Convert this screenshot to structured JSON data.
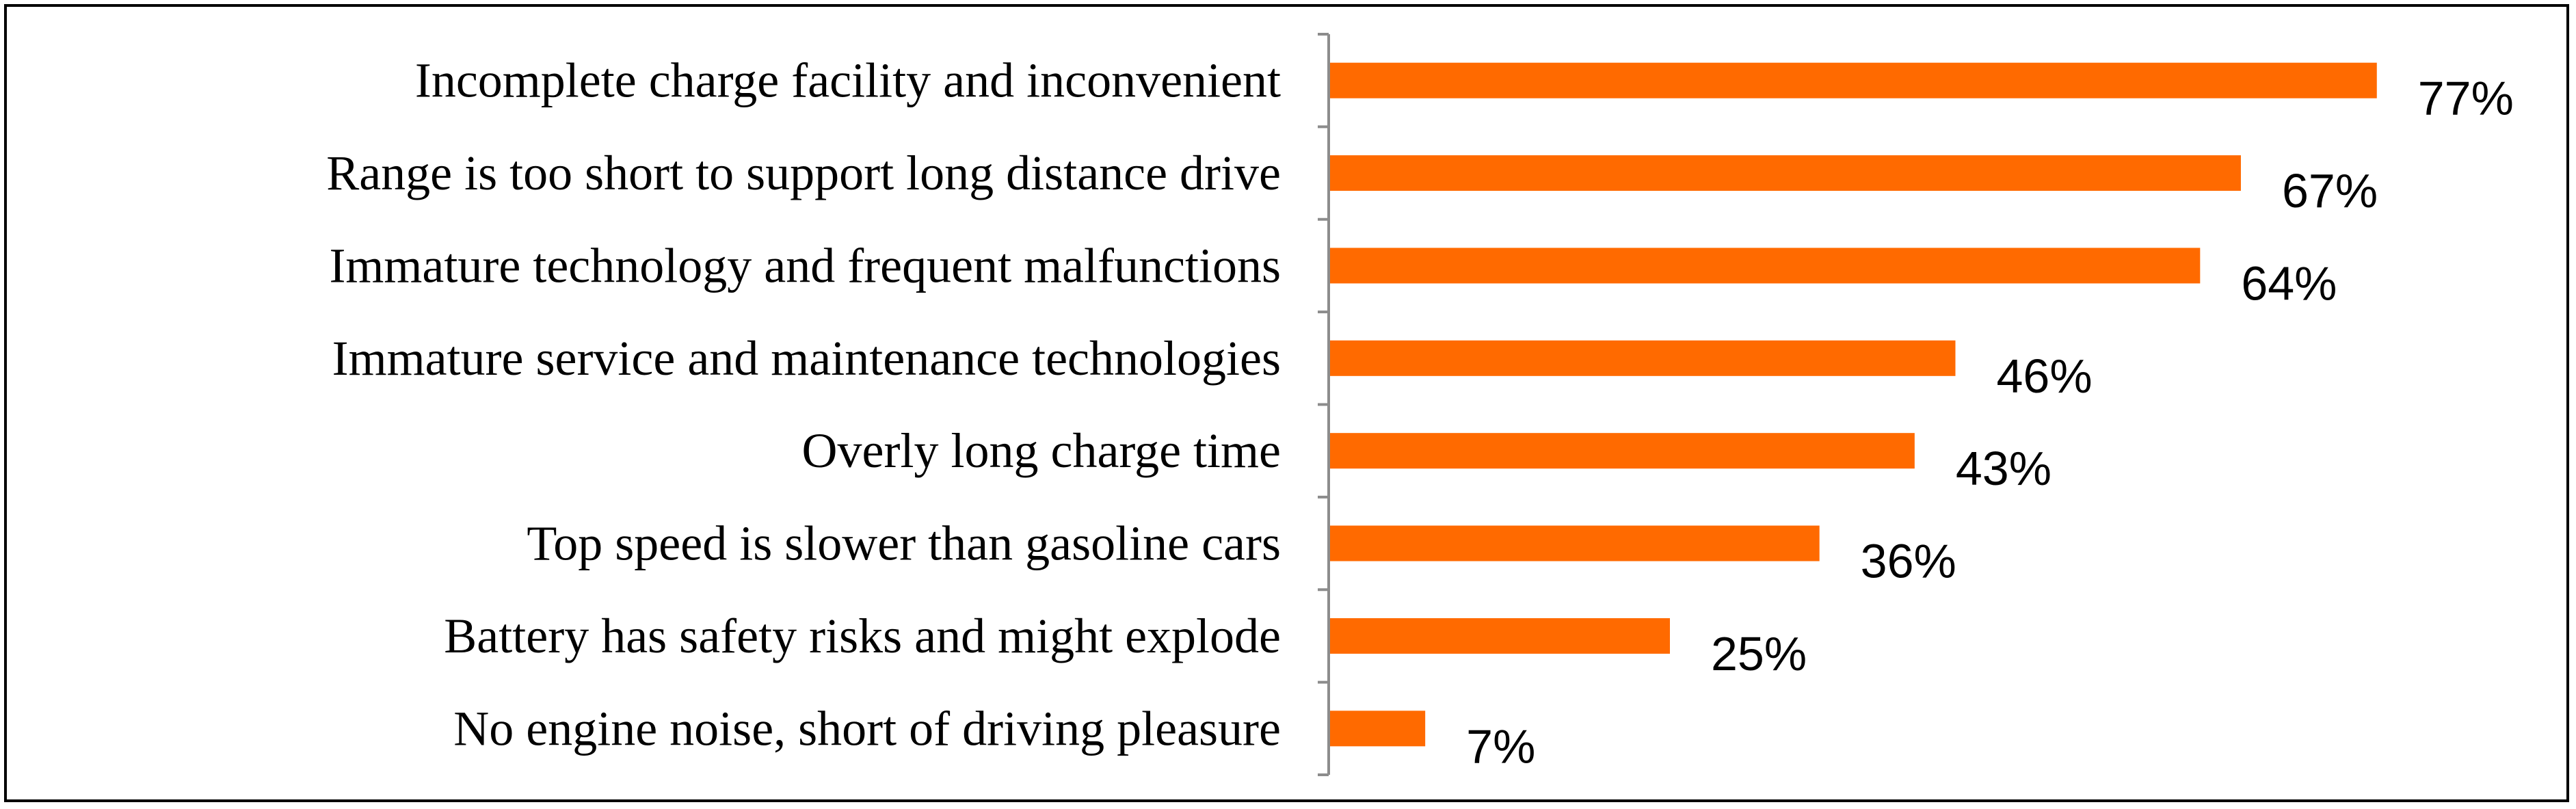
{
  "chart_data": {
    "type": "bar",
    "orientation": "horizontal",
    "categories": [
      "Incomplete charge facility and inconvenient",
      "Range is too short to support long distance drive",
      "Immature technology and frequent malfunctions",
      "Immature service and maintenance technologies",
      "Overly long charge time",
      "Top speed is slower than gasoline cars",
      "Battery has safety risks and might explode",
      "No engine noise, short of driving pleasure"
    ],
    "values": [
      77,
      67,
      64,
      46,
      43,
      36,
      25,
      7
    ],
    "value_labels": [
      "77%",
      "67%",
      "64%",
      "46%",
      "43%",
      "36%",
      "25%",
      "7%"
    ],
    "unit": "%",
    "xlim": [
      0,
      100
    ],
    "grid": false,
    "legend": "none",
    "colors": {
      "bar": "#ff6a00",
      "axis": "#8c8c8c",
      "text": "#000000",
      "frame": "#000000"
    }
  }
}
